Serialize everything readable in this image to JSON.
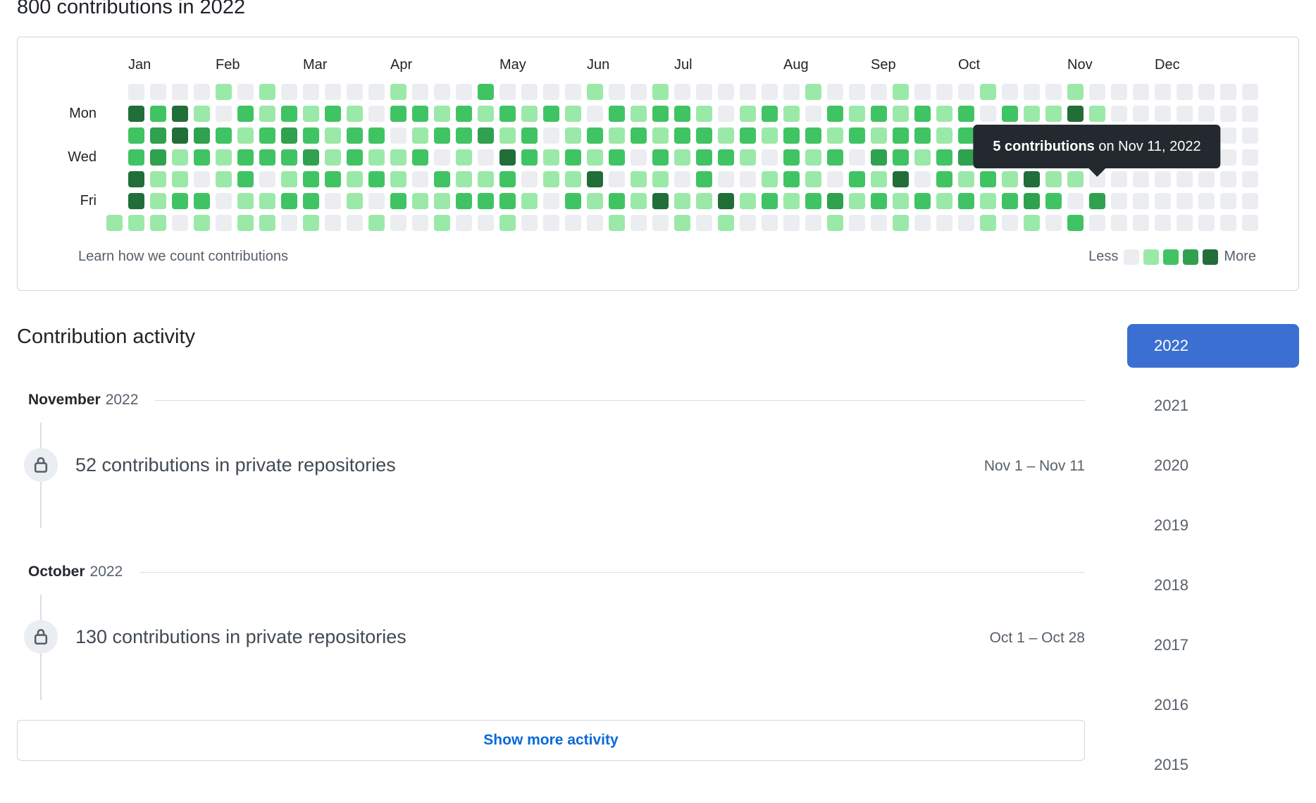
{
  "page": {
    "title": "800 contributions in 2022"
  },
  "graph": {
    "months": [
      {
        "label": "Jan",
        "week": 1
      },
      {
        "label": "Feb",
        "week": 5
      },
      {
        "label": "Mar",
        "week": 9
      },
      {
        "label": "Apr",
        "week": 13
      },
      {
        "label": "May",
        "week": 18
      },
      {
        "label": "Jun",
        "week": 22
      },
      {
        "label": "Jul",
        "week": 26
      },
      {
        "label": "Aug",
        "week": 31
      },
      {
        "label": "Sep",
        "week": 35
      },
      {
        "label": "Oct",
        "week": 39
      },
      {
        "label": "Nov",
        "week": 44
      },
      {
        "label": "Dec",
        "week": 48
      }
    ],
    "day_labels": [
      {
        "label": "Mon",
        "row": 1
      },
      {
        "label": "Wed",
        "row": 3
      },
      {
        "label": "Fri",
        "row": 5
      }
    ],
    "level_colors": [
      "#ebedf0",
      "#9be9a8",
      "#40c463",
      "#30a14e",
      "#216e39"
    ],
    "weeks": [
      "------1",
      "0422441",
      "0233111",
      "0441120",
      "0132021",
      "1021100",
      "0212211",
      "1122011",
      "0232120",
      "0123221",
      "0211200",
      "0122110",
      "0021201",
      "1201120",
      "0212010",
      "0120211",
      "0221120",
      "2130120",
      "0214221",
      "0122010",
      "0201100",
      "0112120",
      "1021410",
      "0212021",
      "0120110",
      "1212140",
      "0221011",
      "0122210",
      "0012041",
      "0121010",
      "0210120",
      "0122210",
      "1021120",
      "0212031",
      "0120210",
      "0213120",
      "1122411",
      "0221020",
      "0112210",
      "0223120",
      "1021211",
      "0244120",
      "0122431",
      "0132120",
      "1442102",
      "0120030",
      "0000000",
      "0000000",
      "0000000",
      "0000000",
      "0000000",
      "0000000",
      "0000000"
    ],
    "tooltip": {
      "bold": "5 contributions",
      "rest": " on Nov 11, 2022"
    },
    "footer_link": "Learn how we count contributions",
    "legend": {
      "less": "Less",
      "more": "More"
    }
  },
  "activity": {
    "heading": "Contribution activity",
    "items": [
      {
        "month": "November",
        "year": "2022",
        "text": "52 contributions in private repositories",
        "date_range": "Nov 1 – Nov 11"
      },
      {
        "month": "October",
        "year": "2022",
        "text": "130 contributions in private repositories",
        "date_range": "Oct 1 – Oct 28"
      }
    ],
    "show_more_label": "Show more activity"
  },
  "years": {
    "selected": "2022",
    "items": [
      "2022",
      "2021",
      "2020",
      "2019",
      "2018",
      "2017",
      "2016",
      "2015"
    ]
  },
  "colors": {
    "selected_year_bg": "#3b6fd1",
    "link_blue": "#0969da",
    "tooltip_bg": "#24292f",
    "border": "#d0d7de"
  }
}
